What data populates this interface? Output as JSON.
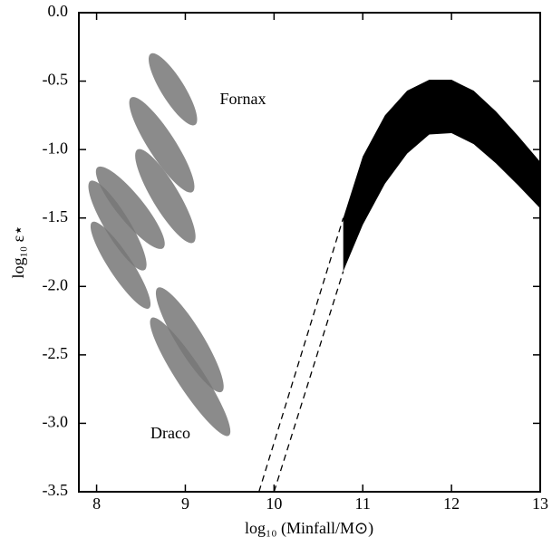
{
  "chart_data": {
    "type": "scatter",
    "xlabel": "log₁₀ (Minfall/M⊙)",
    "ylabel": "log₁₀ ε⋆",
    "xlim": [
      7.8,
      13
    ],
    "ylim": [
      -3.5,
      0
    ],
    "xticks": [
      8,
      9,
      10,
      11,
      12,
      13
    ],
    "yticks": [
      {
        "value": 0,
        "label": "0.0"
      },
      -0.5,
      {
        "value": -1,
        "label": "-1.0"
      },
      -1.5,
      {
        "value": -2,
        "label": "-2.0"
      },
      -2.5,
      {
        "value": -3,
        "label": "-3.0"
      },
      -3.5
    ],
    "annotations": [
      "Fornax",
      "Draco"
    ],
    "ellipses": {
      "color": "#777777",
      "x1": [
        8.61,
        8.39,
        8.46,
        7.95,
        7.93,
        8.01,
        8.69,
        8.62
      ],
      "y1": [
        -0.3,
        -0.62,
        -1.0,
        -1.53,
        -1.23,
        -1.13,
        -2.01,
        -2.23
      ],
      "x2": [
        9.11,
        9.08,
        9.09,
        8.59,
        8.54,
        8.75,
        9.41,
        9.49
      ],
      "y2": [
        -0.82,
        -1.31,
        -1.68,
        -2.16,
        -1.88,
        -1.72,
        -2.77,
        -3.09
      ],
      "width": [
        0.26,
        0.3,
        0.3,
        0.26,
        0.28,
        0.3,
        0.3,
        0.3
      ]
    },
    "band": {
      "color": "#000000",
      "x": [
        10.78,
        11,
        11.25,
        11.5,
        11.75,
        12,
        12.25,
        12.5,
        12.75,
        13
      ],
      "upper": [
        -1.5,
        -1.05,
        -0.75,
        -0.57,
        -0.49,
        -0.49,
        -0.57,
        -0.72,
        -0.9,
        -1.09
      ],
      "lower": [
        -1.89,
        -1.55,
        -1.25,
        -1.03,
        -0.89,
        -0.88,
        -0.96,
        -1.1,
        -1.26,
        -1.43
      ]
    },
    "dashed": [
      {
        "x": [
          9.83,
          10.78
        ],
        "y": [
          -3.5,
          -1.5
        ]
      },
      {
        "x": [
          10.0,
          10.78
        ],
        "y": [
          -3.5,
          -1.89
        ]
      }
    ]
  }
}
